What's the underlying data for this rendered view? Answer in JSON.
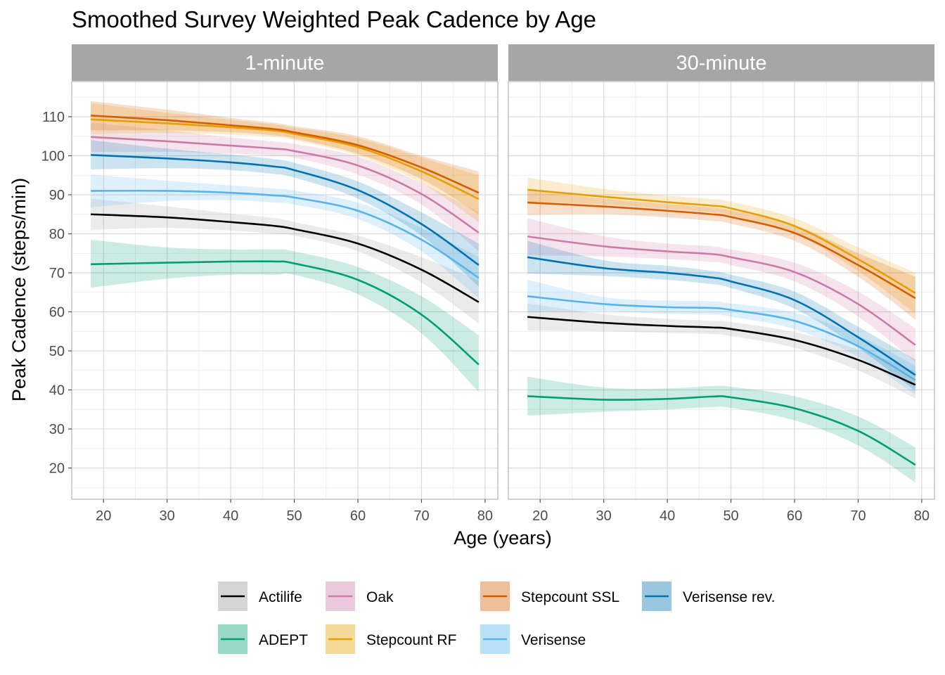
{
  "chart_data": {
    "type": "line",
    "title": "Smoothed Survey Weighted Peak Cadence by Age",
    "xlabel": "Age (years)",
    "ylabel": "Peak Cadence (steps/min)",
    "xlim": [
      15,
      82
    ],
    "ylim": [
      12,
      119
    ],
    "x_ticks": [
      20,
      30,
      40,
      50,
      60,
      70,
      80
    ],
    "y_ticks": [
      20,
      30,
      40,
      50,
      60,
      70,
      80,
      90,
      100,
      110
    ],
    "grid": true,
    "legend_position": "bottom",
    "x": [
      18,
      30,
      40,
      47,
      50,
      60,
      70,
      79
    ],
    "panels": [
      {
        "name": "1-minute",
        "series": [
          {
            "name": "Actilife",
            "color": "#000000",
            "fill": "#999999",
            "values": [
              85,
              84.2,
              83,
              82,
              81.2,
              77.5,
              70.8,
              62.5
            ],
            "lower": [
              81,
              81.5,
              80.8,
              80,
              79.5,
              75.5,
              67.5,
              57
            ],
            "upper": [
              89,
              87,
              85.2,
              84,
              83,
              79.5,
              74,
              68
            ]
          },
          {
            "name": "ADEPT",
            "color": "#009E73",
            "fill": "#009E73",
            "values": [
              72.2,
              72.6,
              72.9,
              72.9,
              72.4,
              68.2,
              59.3,
              46.5
            ],
            "lower": [
              66.2,
              68.5,
              69.5,
              69.5,
              69.5,
              64.5,
              54.5,
              39.5
            ],
            "upper": [
              78.5,
              76.5,
              76,
              76,
              75.5,
              71.5,
              64,
              54
            ]
          },
          {
            "name": "Oak",
            "color": "#CC79A7",
            "fill": "#CC79A7",
            "values": [
              104.8,
              103.7,
              102.6,
              101.8,
              101.2,
              97.5,
              90.2,
              80.3
            ],
            "lower": [
              101,
              101,
              100.5,
              100,
              99.5,
              95.2,
              87.5,
              75.5
            ],
            "upper": [
              108.5,
              106.5,
              104.7,
              103.6,
              103,
              99.8,
              93,
              85.5
            ]
          },
          {
            "name": "Stepcount RF",
            "color": "#E69F00",
            "fill": "#E69F00",
            "values": [
              109.3,
              108.3,
              107.3,
              106.4,
              105.6,
              102.2,
              96,
              88.9
            ],
            "lower": [
              105.5,
              105.8,
              105.4,
              104.8,
              104,
              100,
              93,
              83
            ],
            "upper": [
              113.5,
              111,
              109.2,
              108,
              107.2,
              104.5,
              99.5,
              95
            ]
          },
          {
            "name": "Stepcount SSL",
            "color": "#D55E00",
            "fill": "#D55E00",
            "values": [
              110.3,
              109.1,
              107.8,
              106.8,
              106,
              102.7,
              97,
              90.5
            ],
            "lower": [
              106.5,
              106.5,
              106,
              105.2,
              104.4,
              100.5,
              94,
              85
            ],
            "upper": [
              114,
              111.8,
              109.7,
              108.4,
              107.6,
              105,
              100,
              96
            ]
          },
          {
            "name": "Verisense",
            "color": "#56B4E9",
            "fill": "#56B4E9",
            "values": [
              91,
              91,
              90.5,
              89.8,
              89.3,
              85.9,
              78.5,
              68.7
            ],
            "lower": [
              86.8,
              88.4,
              88.6,
              88,
              87.5,
              83.8,
              75.5,
              63.5
            ],
            "upper": [
              95.2,
              93.6,
              92.4,
              91.6,
              91.1,
              88,
              81.5,
              74
            ]
          },
          {
            "name": "Verisense rev.",
            "color": "#0072B2",
            "fill": "#0072B2",
            "values": [
              100.2,
              99.3,
              98.3,
              97.2,
              96.3,
              91.2,
              82.5,
              72
            ],
            "lower": [
              96.5,
              96.8,
              96.3,
              95.3,
              94.4,
              89,
              79.5,
              66.5
            ],
            "upper": [
              104,
              101.8,
              100.3,
              99.1,
              98.2,
              93.4,
              85.5,
              77.5
            ]
          }
        ]
      },
      {
        "name": "30-minute",
        "series": [
          {
            "name": "Actilife",
            "color": "#000000",
            "fill": "#999999",
            "values": [
              58.7,
              57.2,
              56.4,
              56,
              55.6,
              52.8,
              47.7,
              41.3
            ],
            "lower": [
              55.2,
              55,
              54.6,
              54.3,
              53.8,
              50.8,
              45,
              37.8
            ],
            "upper": [
              62.2,
              59.4,
              58.2,
              57.7,
              57.4,
              54.8,
              50.4,
              44.8
            ]
          },
          {
            "name": "ADEPT",
            "color": "#009E73",
            "fill": "#009E73",
            "values": [
              38.4,
              37.5,
              37.7,
              38.3,
              38.1,
              35.3,
              29.5,
              20.8
            ],
            "lower": [
              33.4,
              34.4,
              35,
              35.6,
              35.4,
              32.2,
              25.8,
              16.3
            ],
            "upper": [
              43.4,
              40.6,
              40.4,
              41,
              40.8,
              38.4,
              33.2,
              25.3
            ]
          },
          {
            "name": "Oak",
            "color": "#CC79A7",
            "fill": "#CC79A7",
            "values": [
              79.3,
              76.8,
              75.5,
              74.8,
              74,
              70.2,
              62,
              51.5
            ],
            "lower": [
              74.5,
              74.2,
              73.5,
              72.8,
              72,
              67.8,
              58.8,
              47.2
            ],
            "upper": [
              84,
              79.4,
              77.5,
              76.8,
              76,
              72.6,
              65.2,
              55.8
            ]
          },
          {
            "name": "Stepcount RF",
            "color": "#E69F00",
            "fill": "#E69F00",
            "values": [
              91.3,
              89.5,
              88.1,
              87.2,
              86.5,
              82,
              73.5,
              64.8
            ],
            "lower": [
              88.2,
              87.5,
              86.4,
              85.5,
              84.8,
              80,
              70.5,
              59.5
            ],
            "upper": [
              94.4,
              91.5,
              89.8,
              88.9,
              88.2,
              84,
              76.5,
              70
            ]
          },
          {
            "name": "Stepcount SSL",
            "color": "#D55E00",
            "fill": "#D55E00",
            "values": [
              88,
              87,
              85.9,
              85,
              84.3,
              80.2,
              72,
              63.5
            ],
            "lower": [
              84.8,
              85,
              84.2,
              83.3,
              82.6,
              78.2,
              69,
              58
            ],
            "upper": [
              91.2,
              89,
              87.6,
              86.7,
              86,
              82.2,
              75,
              69
            ]
          },
          {
            "name": "Verisense",
            "color": "#56B4E9",
            "fill": "#56B4E9",
            "values": [
              64,
              62,
              61.2,
              61,
              60.5,
              57.7,
              51.2,
              42.5
            ],
            "lower": [
              59.8,
              60.2,
              59.5,
              59.3,
              58.8,
              55.6,
              48.5,
              38.8
            ],
            "upper": [
              68.2,
              63.8,
              62.9,
              62.7,
              62.2,
              59.8,
              53.9,
              46.2
            ]
          },
          {
            "name": "Verisense rev.",
            "color": "#0072B2",
            "fill": "#0072B2",
            "values": [
              74,
              71.2,
              70,
              68.8,
              67.8,
              63,
              53.5,
              43.8
            ],
            "lower": [
              69.8,
              69.2,
              68.2,
              67.1,
              66.1,
              60.8,
              50.8,
              39.8
            ],
            "upper": [
              78.2,
              73.2,
              71.8,
              70.5,
              69.5,
              65.2,
              56.2,
              47.8
            ]
          }
        ]
      }
    ],
    "legend_order": [
      "Actilife",
      "Oak",
      "Stepcount SSL",
      "Verisense rev.",
      "ADEPT",
      "Stepcount RF",
      "Verisense"
    ]
  }
}
